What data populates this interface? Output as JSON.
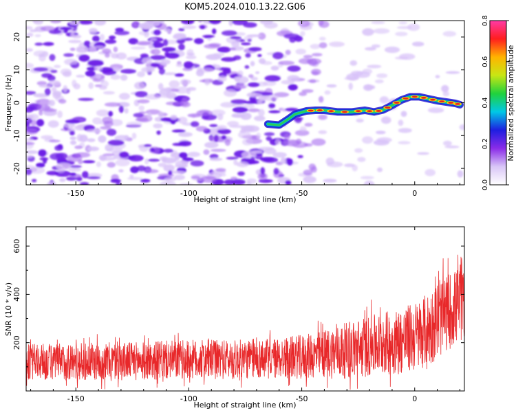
{
  "title": "KOM5.2024.010.13.22.G06",
  "colors": {
    "snr_line": "#e8282a",
    "track_core": "#e8241c",
    "track_outer": "#1432d2",
    "noise_dark": "#6a1ae6",
    "noise_light": "#d8c2f8"
  },
  "chart_data": [
    {
      "type": "heatmap",
      "name": "spectrogram",
      "xlabel": "Height of straight line (km)",
      "ylabel": "Frequency (Hz)",
      "xlim": [
        -172,
        22
      ],
      "ylim": [
        -25,
        25
      ],
      "x_ticks": [
        -150,
        -100,
        -50,
        0
      ],
      "x_tick_labels": [
        "-150",
        "-100",
        "-50",
        "0"
      ],
      "y_ticks": [
        20,
        10,
        0,
        -10,
        -20
      ],
      "y_tick_labels": [
        "20",
        "10",
        "0",
        "-10",
        "-20"
      ],
      "colorbar": {
        "label": "Normalized spectral amplitude",
        "range": [
          0,
          0.8
        ],
        "ticks": [
          0,
          0.2,
          0.4,
          0.6,
          0.8
        ],
        "tick_labels": [
          "0.0",
          "0.2",
          "0.4",
          "0.6",
          "0.8"
        ],
        "colormap": [
          "#ffffff",
          "#d9c6f7",
          "#8a2ce8",
          "#1e1ee0",
          "#00c8e6",
          "#20d23c",
          "#c8e614",
          "#ffb400",
          "#ff1e1e",
          "#ff3aa6"
        ]
      },
      "signal_track": {
        "x": [
          -65,
          -60,
          -56,
          -53,
          -48,
          -44,
          -40,
          -34,
          -28,
          -22,
          -18,
          -14,
          -10,
          -6,
          -2,
          2,
          6,
          10,
          14,
          18,
          20
        ],
        "y": [
          -6.5,
          -6.8,
          -5,
          -3.5,
          -2.5,
          -2.3,
          -2.3,
          -2.8,
          -2.8,
          -2.3,
          -2.8,
          -2.2,
          -0.8,
          0.8,
          1.8,
          1.8,
          1.2,
          0.6,
          0.2,
          -0.2,
          -0.6
        ]
      }
    },
    {
      "type": "line",
      "name": "snr",
      "xlabel": "Height of straight line (km)",
      "ylabel": "SNR (10 * v/v)",
      "xlim": [
        -172,
        22
      ],
      "ylim": [
        0,
        680
      ],
      "x_ticks": [
        -150,
        -100,
        -50,
        0
      ],
      "x_tick_labels": [
        "-150",
        "-100",
        "-50",
        "0"
      ],
      "y_ticks": [
        200,
        400,
        600
      ],
      "y_tick_labels": [
        "200",
        "400",
        "600"
      ],
      "series": [
        {
          "envelope_x": [
            -172,
            -150,
            -120,
            -100,
            -80,
            -60,
            -45,
            -35,
            -25,
            -15,
            -5,
            0,
            5,
            10,
            15,
            22
          ],
          "mean": [
            120,
            120,
            125,
            130,
            130,
            135,
            145,
            160,
            175,
            195,
            210,
            225,
            250,
            290,
            330,
            370
          ],
          "spread": [
            75,
            78,
            80,
            82,
            82,
            85,
            95,
            110,
            125,
            130,
            140,
            145,
            150,
            160,
            160,
            160
          ]
        }
      ]
    }
  ]
}
